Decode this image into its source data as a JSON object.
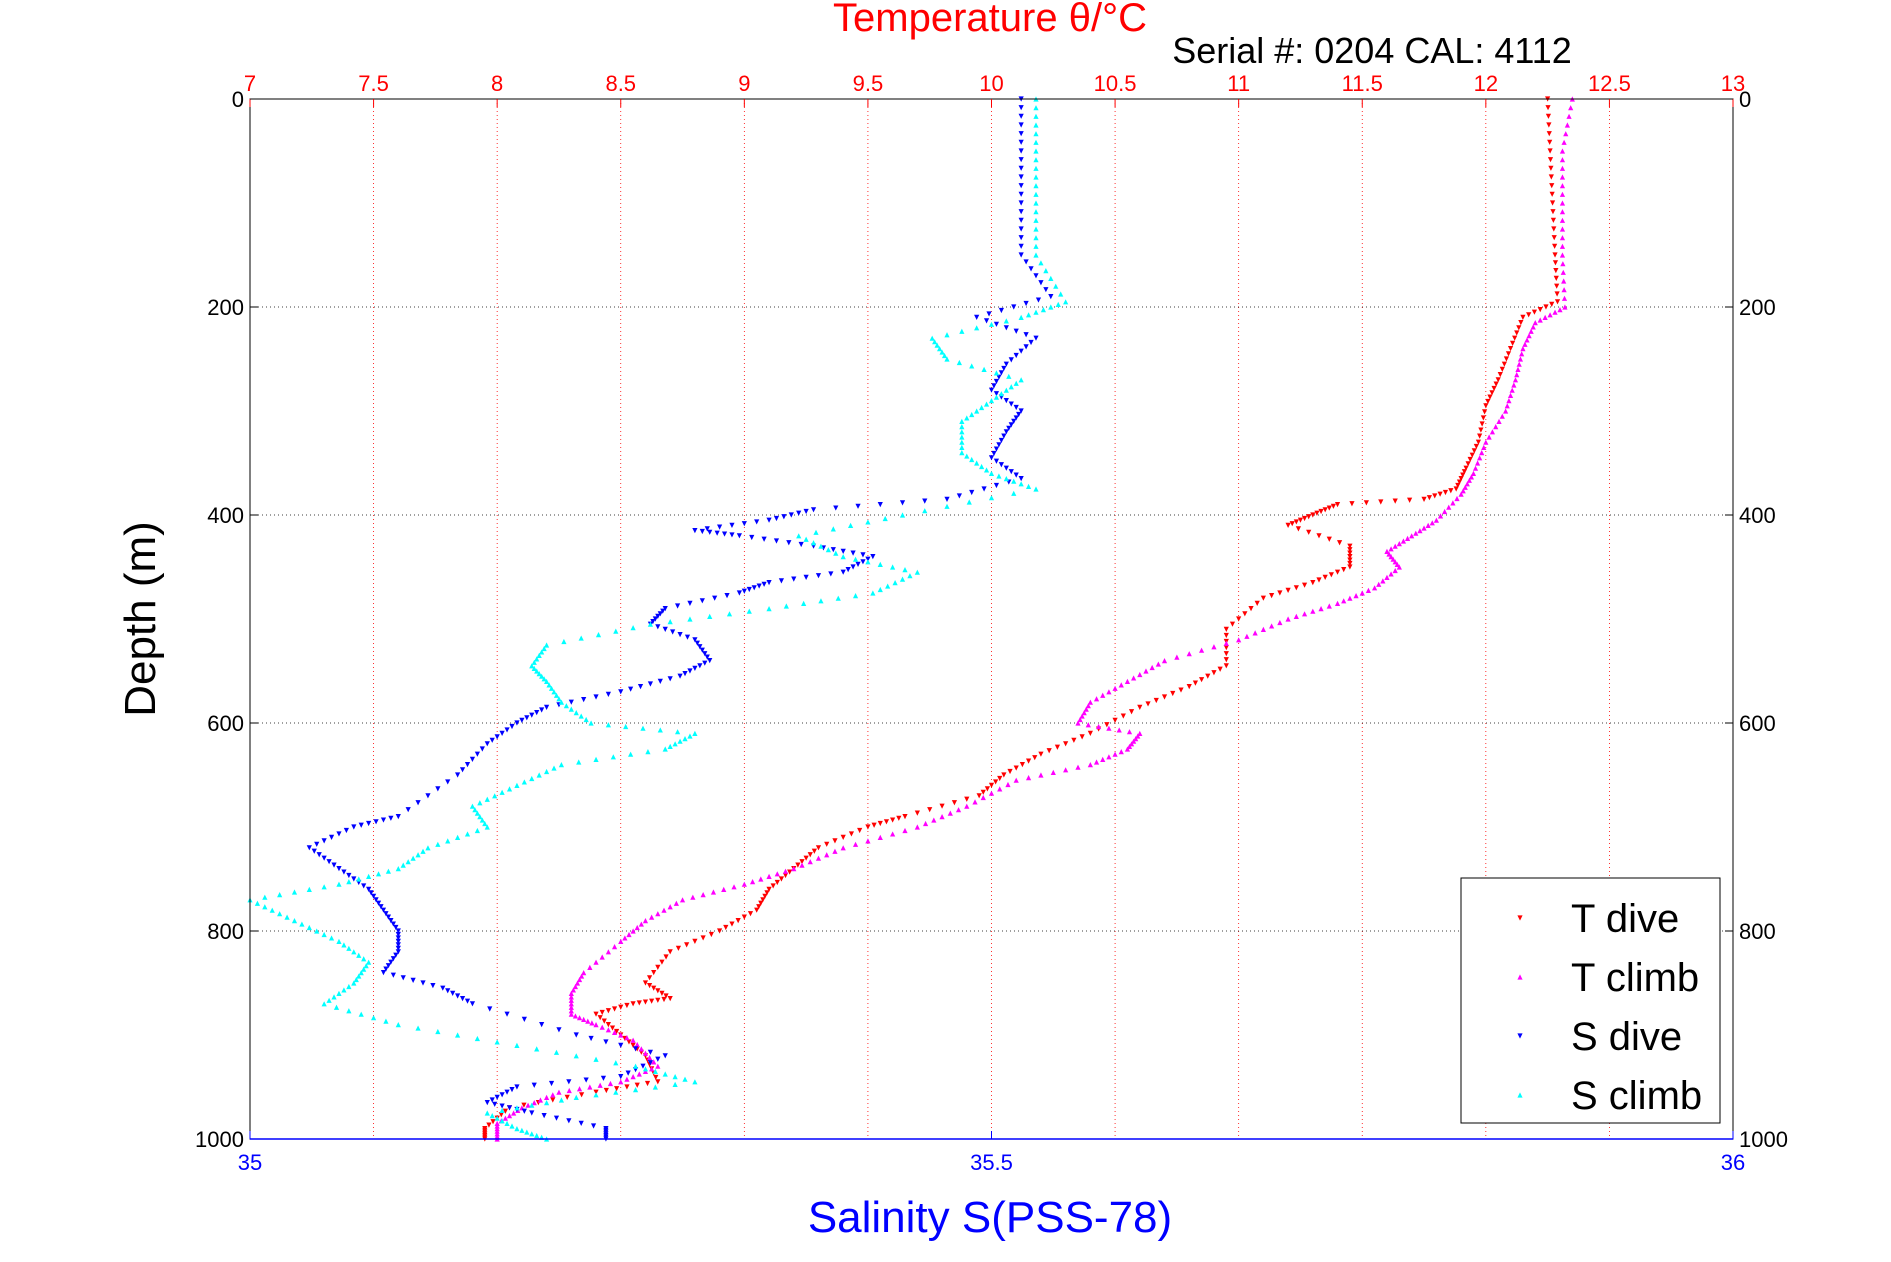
{
  "chart_data": {
    "type": "scatter",
    "title": "Temperature θ/°C",
    "subtitle": "Serial #: 0204  CAL: 4112",
    "ylabel": "Depth (m)",
    "xlabel": "Salinity S(PSS-78)",
    "y_axis": {
      "range": [
        0,
        1000
      ],
      "reversed": true,
      "ticks": [
        0,
        200,
        400,
        600,
        800,
        1000
      ]
    },
    "x_top": {
      "name": "Temperature",
      "range": [
        7,
        13
      ],
      "ticks": [
        "7",
        "7.5",
        "8",
        "8.5",
        "9",
        "9.5",
        "10",
        "10.5",
        "11",
        "11.5",
        "12",
        "12.5",
        "13"
      ],
      "color": "#ff0000"
    },
    "x_bottom": {
      "name": "Salinity",
      "range": [
        35,
        36
      ],
      "ticks": [
        "35",
        "35.5",
        "36"
      ],
      "color": "#0000ff"
    },
    "grid": true,
    "legend_position": "bottom-right",
    "series": [
      {
        "name": "T dive",
        "axis": "temperature",
        "color": "#ff0000",
        "marker": "triangle-down",
        "points": [
          [
            12.25,
            0
          ],
          [
            12.26,
            50
          ],
          [
            12.27,
            100
          ],
          [
            12.28,
            150
          ],
          [
            12.29,
            195
          ],
          [
            12.15,
            210
          ],
          [
            12.1,
            240
          ],
          [
            12.05,
            270
          ],
          [
            12.0,
            295
          ],
          [
            11.97,
            330
          ],
          [
            11.92,
            355
          ],
          [
            11.88,
            375
          ],
          [
            11.75,
            385
          ],
          [
            11.4,
            390
          ],
          [
            11.3,
            400
          ],
          [
            11.2,
            410
          ],
          [
            11.45,
            430
          ],
          [
            11.45,
            450
          ],
          [
            11.3,
            465
          ],
          [
            11.1,
            480
          ],
          [
            10.95,
            510
          ],
          [
            10.95,
            545
          ],
          [
            10.8,
            565
          ],
          [
            10.6,
            585
          ],
          [
            10.4,
            610
          ],
          [
            10.2,
            630
          ],
          [
            10.05,
            650
          ],
          [
            9.95,
            670
          ],
          [
            9.65,
            690
          ],
          [
            9.5,
            700
          ],
          [
            9.3,
            720
          ],
          [
            9.2,
            740
          ],
          [
            9.1,
            760
          ],
          [
            9.05,
            780
          ],
          [
            8.9,
            800
          ],
          [
            8.7,
            820
          ],
          [
            8.6,
            850
          ],
          [
            8.7,
            865
          ],
          [
            8.55,
            870
          ],
          [
            8.4,
            880
          ],
          [
            8.5,
            900
          ],
          [
            8.6,
            920
          ],
          [
            8.65,
            945
          ],
          [
            8.4,
            955
          ],
          [
            8.05,
            970
          ],
          [
            7.95,
            990
          ],
          [
            7.95,
            1000
          ]
        ]
      },
      {
        "name": "T climb",
        "axis": "temperature",
        "color": "#ff00ff",
        "marker": "triangle-up",
        "points": [
          [
            12.35,
            0
          ],
          [
            12.31,
            50
          ],
          [
            12.31,
            100
          ],
          [
            12.31,
            150
          ],
          [
            12.32,
            200
          ],
          [
            12.2,
            215
          ],
          [
            12.15,
            240
          ],
          [
            12.12,
            270
          ],
          [
            12.08,
            300
          ],
          [
            12.0,
            330
          ],
          [
            11.95,
            360
          ],
          [
            11.9,
            380
          ],
          [
            11.8,
            405
          ],
          [
            11.7,
            420
          ],
          [
            11.6,
            435
          ],
          [
            11.65,
            450
          ],
          [
            11.55,
            470
          ],
          [
            11.4,
            485
          ],
          [
            11.2,
            500
          ],
          [
            11.0,
            520
          ],
          [
            10.7,
            540
          ],
          [
            10.55,
            560
          ],
          [
            10.4,
            580
          ],
          [
            10.35,
            600
          ],
          [
            10.6,
            610
          ],
          [
            10.55,
            625
          ],
          [
            10.4,
            640
          ],
          [
            10.1,
            655
          ],
          [
            9.9,
            680
          ],
          [
            9.7,
            700
          ],
          [
            9.4,
            720
          ],
          [
            9.2,
            740
          ],
          [
            9.0,
            755
          ],
          [
            8.75,
            770
          ],
          [
            8.6,
            790
          ],
          [
            8.5,
            810
          ],
          [
            8.35,
            840
          ],
          [
            8.3,
            860
          ],
          [
            8.3,
            880
          ],
          [
            8.4,
            890
          ],
          [
            8.55,
            905
          ],
          [
            8.65,
            930
          ],
          [
            8.5,
            945
          ],
          [
            8.25,
            955
          ],
          [
            8.1,
            970
          ],
          [
            8.0,
            985
          ],
          [
            8.0,
            1000
          ]
        ]
      },
      {
        "name": "S dive",
        "axis": "salinity",
        "color": "#0000ff",
        "marker": "triangle-down",
        "points": [
          [
            35.52,
            0
          ],
          [
            35.52,
            50
          ],
          [
            35.52,
            100
          ],
          [
            35.52,
            150
          ],
          [
            35.54,
            190
          ],
          [
            35.49,
            210
          ],
          [
            35.53,
            230
          ],
          [
            35.51,
            255
          ],
          [
            35.5,
            280
          ],
          [
            35.52,
            300
          ],
          [
            35.51,
            320
          ],
          [
            35.5,
            345
          ],
          [
            35.52,
            365
          ],
          [
            35.47,
            385
          ],
          [
            35.38,
            395
          ],
          [
            35.35,
            405
          ],
          [
            35.3,
            415
          ],
          [
            35.33,
            420
          ],
          [
            35.38,
            430
          ],
          [
            35.42,
            440
          ],
          [
            35.4,
            455
          ],
          [
            35.35,
            465
          ],
          [
            35.33,
            475
          ],
          [
            35.28,
            490
          ],
          [
            35.27,
            505
          ],
          [
            35.3,
            520
          ],
          [
            35.31,
            540
          ],
          [
            35.29,
            555
          ],
          [
            35.25,
            570
          ],
          [
            35.2,
            585
          ],
          [
            35.18,
            600
          ],
          [
            35.16,
            620
          ],
          [
            35.14,
            650
          ],
          [
            35.1,
            690
          ],
          [
            35.07,
            700
          ],
          [
            35.04,
            720
          ],
          [
            35.06,
            740
          ],
          [
            35.08,
            760
          ],
          [
            35.09,
            780
          ],
          [
            35.1,
            800
          ],
          [
            35.1,
            820
          ],
          [
            35.09,
            840
          ],
          [
            35.13,
            855
          ],
          [
            35.15,
            870
          ],
          [
            35.22,
            900
          ],
          [
            35.28,
            920
          ],
          [
            35.25,
            940
          ],
          [
            35.18,
            950
          ],
          [
            35.16,
            965
          ],
          [
            35.19,
            975
          ],
          [
            35.24,
            990
          ],
          [
            35.24,
            1000
          ]
        ]
      },
      {
        "name": "S climb",
        "axis": "salinity",
        "color": "#00ffff",
        "marker": "triangle-up",
        "points": [
          [
            35.53,
            0
          ],
          [
            35.53,
            50
          ],
          [
            35.53,
            100
          ],
          [
            35.53,
            150
          ],
          [
            35.55,
            195
          ],
          [
            35.52,
            210
          ],
          [
            35.46,
            230
          ],
          [
            35.47,
            250
          ],
          [
            35.52,
            270
          ],
          [
            35.5,
            290
          ],
          [
            35.48,
            310
          ],
          [
            35.48,
            340
          ],
          [
            35.5,
            360
          ],
          [
            35.53,
            375
          ],
          [
            35.44,
            400
          ],
          [
            35.37,
            420
          ],
          [
            35.4,
            440
          ],
          [
            35.45,
            455
          ],
          [
            35.42,
            475
          ],
          [
            35.35,
            490
          ],
          [
            35.27,
            505
          ],
          [
            35.2,
            525
          ],
          [
            35.19,
            545
          ],
          [
            35.2,
            560
          ],
          [
            35.21,
            580
          ],
          [
            35.23,
            600
          ],
          [
            35.3,
            610
          ],
          [
            35.28,
            625
          ],
          [
            35.21,
            640
          ],
          [
            35.18,
            660
          ],
          [
            35.15,
            680
          ],
          [
            35.16,
            700
          ],
          [
            35.12,
            720
          ],
          [
            35.1,
            740
          ],
          [
            35.06,
            755
          ],
          [
            35.0,
            770
          ],
          [
            35.03,
            790
          ],
          [
            35.06,
            810
          ],
          [
            35.08,
            830
          ],
          [
            35.07,
            850
          ],
          [
            35.05,
            870
          ],
          [
            35.1,
            890
          ],
          [
            35.18,
            910
          ],
          [
            35.26,
            930
          ],
          [
            35.3,
            945
          ],
          [
            35.22,
            960
          ],
          [
            35.16,
            975
          ],
          [
            35.18,
            990
          ],
          [
            35.2,
            1000
          ]
        ]
      }
    ]
  }
}
